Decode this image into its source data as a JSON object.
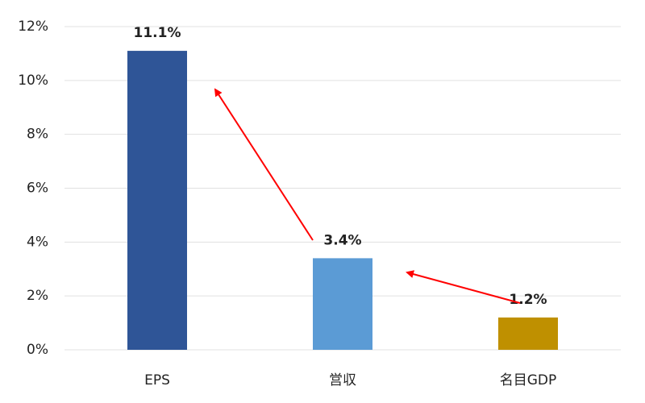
{
  "chart_data": {
    "type": "bar",
    "categories": [
      "EPS",
      "営収",
      "名目GDP"
    ],
    "values": [
      11.1,
      3.4,
      1.2
    ],
    "value_labels": [
      "11.1%",
      "3.4%",
      "1.2%"
    ],
    "colors": [
      "#2f5597",
      "#5b9bd5",
      "#bf9000"
    ],
    "ylim": [
      0,
      12
    ],
    "yticks": [
      {
        "value": 0,
        "label": "0%"
      },
      {
        "value": 2,
        "label": "2%"
      },
      {
        "value": 4,
        "label": "4%"
      },
      {
        "value": 6,
        "label": "6%"
      },
      {
        "value": 8,
        "label": "8%"
      },
      {
        "value": 10,
        "label": "10%"
      },
      {
        "value": 12,
        "label": "12%"
      }
    ],
    "grid": true
  }
}
